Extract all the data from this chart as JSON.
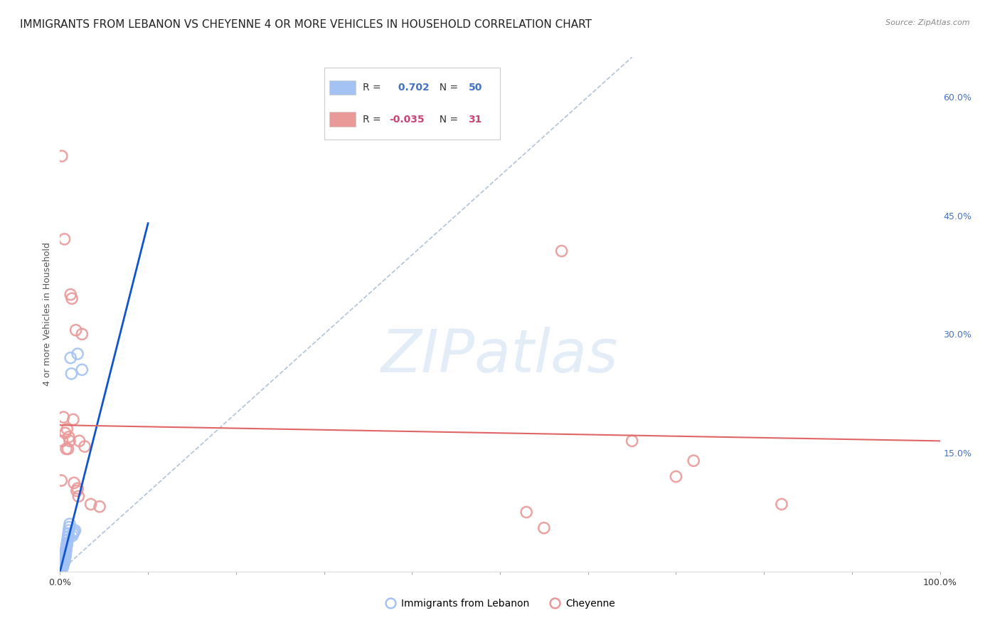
{
  "title": "IMMIGRANTS FROM LEBANON VS CHEYENNE 4 OR MORE VEHICLES IN HOUSEHOLD CORRELATION CHART",
  "source": "Source: ZipAtlas.com",
  "ylabel": "4 or more Vehicles in Household",
  "xlim": [
    0,
    100
  ],
  "ylim": [
    0,
    65
  ],
  "yticks_right": [
    15,
    30,
    45,
    60
  ],
  "ytick_labels_right": [
    "15.0%",
    "30.0%",
    "45.0%",
    "60.0%"
  ],
  "blue_R": 0.702,
  "blue_N": 50,
  "pink_R": -0.035,
  "pink_N": 31,
  "blue_color": "#a4c2f4",
  "pink_color": "#ea9999",
  "blue_line_color": "#1155cc",
  "pink_line_color": "#e06666",
  "blue_scatter": [
    [
      0.05,
      0.3
    ],
    [
      0.08,
      0.5
    ],
    [
      0.1,
      0.8
    ],
    [
      0.12,
      1.0
    ],
    [
      0.15,
      0.4
    ],
    [
      0.18,
      0.6
    ],
    [
      0.2,
      1.2
    ],
    [
      0.22,
      0.9
    ],
    [
      0.25,
      1.5
    ],
    [
      0.28,
      1.1
    ],
    [
      0.3,
      0.7
    ],
    [
      0.32,
      0.5
    ],
    [
      0.35,
      0.8
    ],
    [
      0.38,
      1.0
    ],
    [
      0.4,
      1.4
    ],
    [
      0.42,
      1.6
    ],
    [
      0.45,
      1.8
    ],
    [
      0.48,
      2.0
    ],
    [
      0.5,
      1.2
    ],
    [
      0.52,
      1.4
    ],
    [
      0.55,
      1.6
    ],
    [
      0.58,
      1.8
    ],
    [
      0.6,
      2.2
    ],
    [
      0.62,
      2.0
    ],
    [
      0.65,
      2.4
    ],
    [
      0.68,
      2.6
    ],
    [
      0.7,
      2.8
    ],
    [
      0.72,
      3.0
    ],
    [
      0.75,
      3.2
    ],
    [
      0.78,
      3.4
    ],
    [
      0.8,
      3.6
    ],
    [
      0.85,
      4.0
    ],
    [
      0.9,
      4.4
    ],
    [
      0.95,
      4.8
    ],
    [
      1.0,
      5.2
    ],
    [
      1.05,
      5.6
    ],
    [
      1.1,
      6.0
    ],
    [
      1.2,
      27.0
    ],
    [
      1.3,
      25.0
    ],
    [
      1.4,
      4.5
    ],
    [
      1.5,
      4.8
    ],
    [
      1.6,
      5.0
    ],
    [
      1.7,
      5.2
    ],
    [
      0.03,
      0.2
    ],
    [
      0.06,
      0.4
    ],
    [
      0.09,
      0.6
    ],
    [
      0.13,
      0.9
    ],
    [
      0.16,
      1.1
    ],
    [
      2.0,
      27.5
    ],
    [
      2.5,
      25.5
    ]
  ],
  "pink_scatter": [
    [
      0.2,
      52.5
    ],
    [
      0.5,
      42.0
    ],
    [
      1.2,
      35.0
    ],
    [
      1.35,
      34.5
    ],
    [
      1.8,
      30.5
    ],
    [
      2.5,
      30.0
    ],
    [
      0.4,
      19.5
    ],
    [
      1.5,
      19.2
    ],
    [
      0.8,
      18.0
    ],
    [
      0.6,
      17.5
    ],
    [
      1.0,
      17.0
    ],
    [
      1.1,
      16.5
    ],
    [
      2.2,
      16.5
    ],
    [
      0.25,
      16.5
    ],
    [
      2.8,
      15.8
    ],
    [
      0.7,
      15.5
    ],
    [
      0.9,
      15.5
    ],
    [
      0.15,
      11.5
    ],
    [
      1.6,
      11.2
    ],
    [
      2.0,
      10.5
    ],
    [
      1.9,
      10.2
    ],
    [
      2.1,
      9.5
    ],
    [
      3.5,
      8.5
    ],
    [
      4.5,
      8.2
    ],
    [
      57.0,
      40.5
    ],
    [
      65.0,
      16.5
    ],
    [
      72.0,
      14.0
    ],
    [
      70.0,
      12.0
    ],
    [
      82.0,
      8.5
    ],
    [
      53.0,
      7.5
    ],
    [
      55.0,
      5.5
    ]
  ],
  "blue_line_x": [
    0.0,
    10.0
  ],
  "blue_line_y": [
    0.0,
    44.0
  ],
  "pink_line_x": [
    0.0,
    100.0
  ],
  "pink_line_y": [
    18.5,
    16.5
  ],
  "ref_line_x": [
    0.0,
    65.0
  ],
  "ref_line_y": [
    0.0,
    65.0
  ],
  "watermark_text": "ZIPatlas",
  "bg_color": "#ffffff",
  "grid_color": "#cccccc",
  "title_fontsize": 11,
  "axis_label_fontsize": 9,
  "tick_fontsize": 9,
  "source_fontsize": 8
}
